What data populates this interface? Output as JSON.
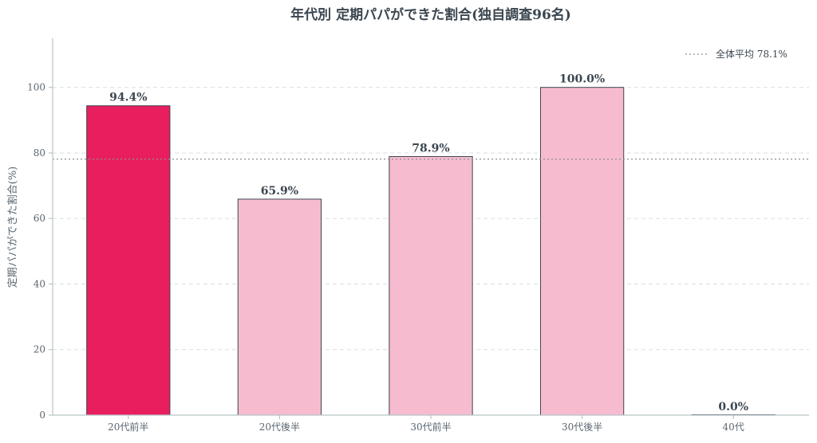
{
  "chart_data": {
    "type": "bar",
    "title": "年代別 定期パパができた割合(独自調査96名)",
    "ylabel": "定期パパができた割合(%)",
    "xlabel": "",
    "categories": [
      "20代前半",
      "20代後半",
      "30代前半",
      "30代後半",
      "40代"
    ],
    "values": [
      94.4,
      65.9,
      78.9,
      100.0,
      0.0
    ],
    "data_labels": [
      "94.4%",
      "65.9%",
      "78.9%",
      "100.0%",
      "0.0%"
    ],
    "highlight_index": 0,
    "ylim": [
      0,
      115
    ],
    "yticks": [
      0,
      20,
      40,
      60,
      80,
      100
    ],
    "grid": true,
    "reference_line": {
      "value": 78.1,
      "label": "全体平均 78.1%"
    },
    "legend": "top-right",
    "colors": {
      "highlight": "#e91e5f",
      "bar": "#f7bbcf",
      "edge": "#3b4650",
      "reference": "#8a8f94"
    }
  }
}
